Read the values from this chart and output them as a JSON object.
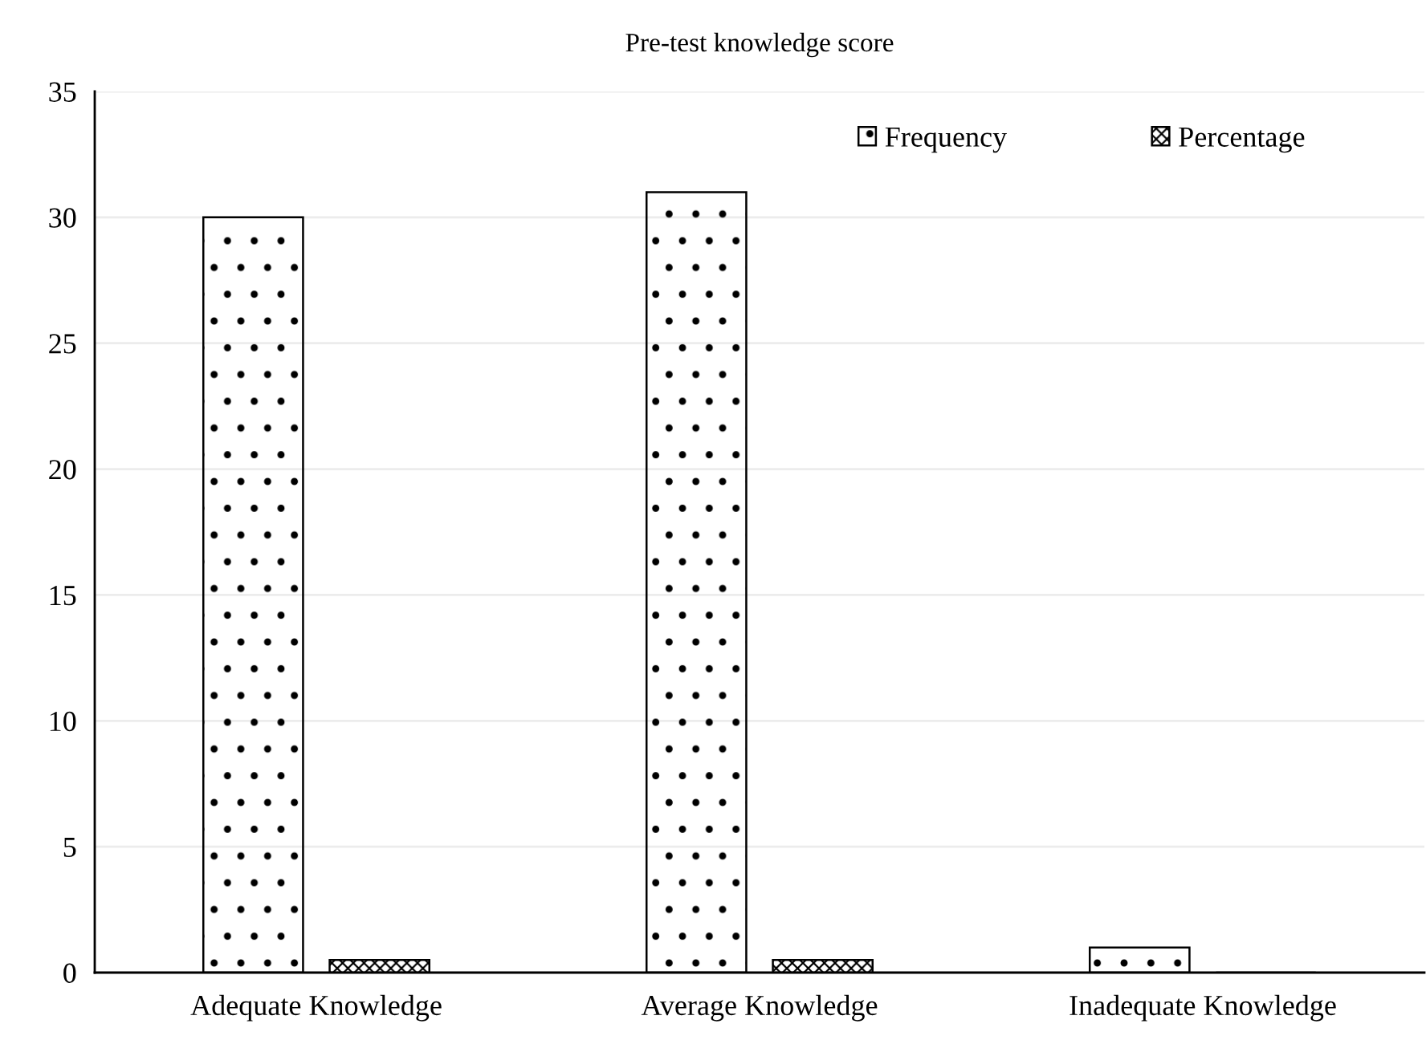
{
  "chart_data": {
    "type": "bar",
    "title": "Pre-test knowledge score",
    "categories": [
      "Adequate Knowledge",
      "Average Knowledge",
      "Inadequate Knowledge"
    ],
    "series": [
      {
        "name": "Frequency",
        "color": "#000000",
        "values": [
          30,
          31,
          1
        ]
      },
      {
        "name": "Percentage",
        "color": "#000000",
        "values": [
          0.5,
          0.5,
          0
        ]
      }
    ],
    "ylim": [
      0,
      35
    ],
    "yticks": [
      0,
      5,
      10,
      15,
      20,
      25,
      30,
      35
    ],
    "grid": "y",
    "legend": "top right"
  }
}
